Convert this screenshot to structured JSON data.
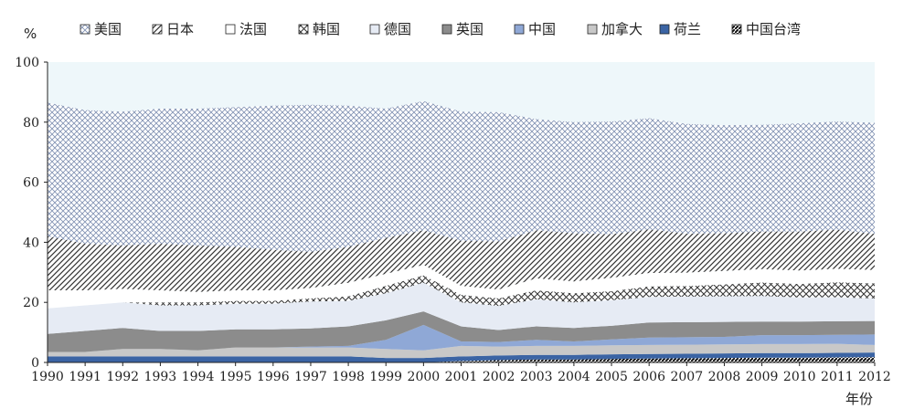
{
  "chart_data": {
    "type": "area",
    "stacked": true,
    "title": "",
    "ylabel": "%",
    "xlabel": "年份",
    "ylim": [
      0,
      100
    ],
    "yticks": [
      0,
      20,
      40,
      60,
      80,
      100
    ],
    "x": [
      1990,
      1991,
      1992,
      1993,
      1994,
      1995,
      1996,
      1997,
      1998,
      1999,
      2000,
      2001,
      2002,
      2003,
      2004,
      2005,
      2006,
      2007,
      2008,
      2009,
      2010,
      2011,
      2012
    ],
    "legend_position": "top",
    "series": [
      {
        "name": "中国台湾",
        "pattern": "diag-dense",
        "color": "#111111",
        "values": [
          0,
          0,
          0,
          0,
          0,
          0,
          0,
          0,
          0,
          0,
          0,
          0.5,
          0.8,
          1,
          1,
          1.2,
          1.3,
          1.4,
          1.5,
          1.6,
          1.6,
          1.7,
          1.8
        ]
      },
      {
        "name": "荷兰",
        "pattern": "solid",
        "color": "#3b64a4",
        "values": [
          2,
          2,
          2,
          2,
          2,
          2,
          2,
          2,
          2,
          1.5,
          1.5,
          1.5,
          1.5,
          1.5,
          1.5,
          1.5,
          1.5,
          1.5,
          1.5,
          1.5,
          1.5,
          1.5,
          1.5
        ]
      },
      {
        "name": "加拿大",
        "pattern": "solid",
        "color": "#c8c8c8",
        "values": [
          1.5,
          1.5,
          2.5,
          2.5,
          2,
          3,
          3,
          3,
          3,
          3,
          2.5,
          3.5,
          3,
          3,
          3,
          3,
          3,
          3,
          3,
          3,
          3,
          3,
          2.5
        ]
      },
      {
        "name": "中国",
        "pattern": "solid",
        "color": "#8fa8d6",
        "values": [
          0,
          0,
          0,
          0,
          0,
          0,
          0,
          0.3,
          0.5,
          3,
          8.5,
          1.5,
          1.5,
          2,
          1.5,
          2,
          2.5,
          2.5,
          2.5,
          3,
          3,
          3,
          3.5
        ]
      },
      {
        "name": "英国",
        "pattern": "solid",
        "color": "#8c8c8c",
        "values": [
          6,
          7,
          7,
          6,
          6.5,
          6,
          6,
          6,
          6.5,
          6.5,
          4.5,
          5,
          4,
          4.5,
          4.5,
          4.5,
          5,
          5,
          5,
          4.5,
          4.5,
          4.5,
          4.5
        ]
      },
      {
        "name": "德国",
        "pattern": "solid",
        "color": "#e6ebf4",
        "values": [
          8.5,
          8.5,
          8.5,
          8.5,
          8.5,
          8.5,
          8.5,
          9,
          8.5,
          9,
          9.5,
          8,
          8,
          9,
          8.5,
          8.5,
          8.5,
          8.5,
          8.5,
          8.5,
          8,
          8,
          7.5
        ]
      },
      {
        "name": "韩国",
        "pattern": "crosshatch",
        "color": "#333333",
        "values": [
          0,
          0,
          0,
          1,
          1,
          1,
          1,
          1,
          1.5,
          2.5,
          2.5,
          2.5,
          2.5,
          3,
          3,
          3,
          3.5,
          3.5,
          4,
          4.5,
          4.5,
          5,
          5
        ]
      },
      {
        "name": "法国",
        "pattern": "solid",
        "color": "#ffffff",
        "values": [
          6,
          5,
          4.5,
          4,
          3.5,
          3.5,
          3.5,
          3.5,
          4.5,
          4,
          3.5,
          3,
          3,
          4,
          4,
          4.5,
          4.5,
          4.5,
          4.5,
          4.5,
          4.5,
          4.5,
          4.5
        ]
      },
      {
        "name": "日本",
        "pattern": "diagonal",
        "color": "#333333",
        "values": [
          18,
          15.5,
          14.5,
          15.5,
          15.5,
          14.5,
          13.5,
          12,
          12,
          12,
          11.5,
          15,
          16,
          16,
          16,
          14.5,
          14.5,
          13,
          12.5,
          12.5,
          13,
          13,
          12
        ]
      },
      {
        "name": "美国",
        "pattern": "crosshatch-light",
        "color": "#8a9ab8",
        "values": [
          44.5,
          44.5,
          44.5,
          45,
          45.5,
          46.5,
          48,
          49,
          47,
          43,
          43,
          43,
          43,
          37,
          37,
          37.5,
          37,
          36.5,
          36,
          35.5,
          36,
          36,
          37
        ]
      }
    ],
    "legend_order": [
      "美国",
      "日本",
      "法国",
      "韩国",
      "德国",
      "英国",
      "中国",
      "加拿大",
      "荷兰",
      "中国台湾"
    ],
    "background_fill": "#eef7fa"
  }
}
